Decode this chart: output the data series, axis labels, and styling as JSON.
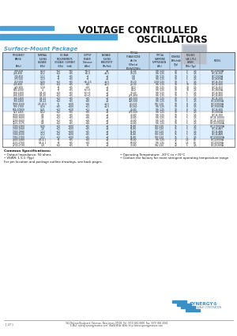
{
  "title_line1": "VOLTAGE CONTROLLED",
  "title_line2": "OSCILLATORS",
  "section_title": "Surface-Mount Package",
  "bg_color": "#ffffff",
  "header_blue": "#4a9fd4",
  "title_color": "#111111",
  "section_color": "#4a9fd4",
  "table_header_bg": "#bdd7ee",
  "table_row_bg_light": "#ddeeff",
  "table_row_bg_white": "#ffffff",
  "synergy_blue": "#3a8fc4",
  "part_number": "16315",
  "col_headers_line1": [
    "FREQUENCY",
    "NOMINAL",
    "DC BIAS",
    "OUTPUT",
    "AVERAGE",
    "TYPICAL",
    "TYPICAL",
    "PUSHING",
    "PULLING",
    ""
  ],
  "col_headers_line2": [
    "RANGE",
    "TUNING",
    "REQUIREMENTS",
    "POWER",
    "TUNING",
    "PHASE NOISE",
    "HARMONIC",
    "(MHz/mA)",
    "(dB 1.75:1 VSWR)",
    "MODEL"
  ],
  "col_headers_line3": [
    "",
    "VOLTAGE",
    "VOLTAGE  CURRENT",
    "Tolerance",
    "SENSITIVITY",
    "dBc/Hz",
    "SUPPRESSION",
    "(Typ)",
    "MHz",
    ""
  ],
  "col_headers_line4": [
    "(MHz)",
    "(VDc)",
    "(VDc)     (mA)",
    "(dBm)",
    "MHz/Volt",
    "Offset at",
    "(dBc)",
    "",
    "(Typ)",
    ""
  ],
  "col_headers_line5": [
    "",
    "",
    "",
    "",
    "",
    "10 kHz/100 kHz",
    "",
    "",
    "",
    ""
  ],
  "footer_address": "361 McLean Boulevard  Paterson, New Jersey 07504  Tel: (973) 881-8800  Fax: (973) 881-8361",
  "footer_email": "E-Mail: sales@synergymwave.com  World Wide Web: http://www.synergymwave.com",
  "footer_page": "[ 27 ]"
}
